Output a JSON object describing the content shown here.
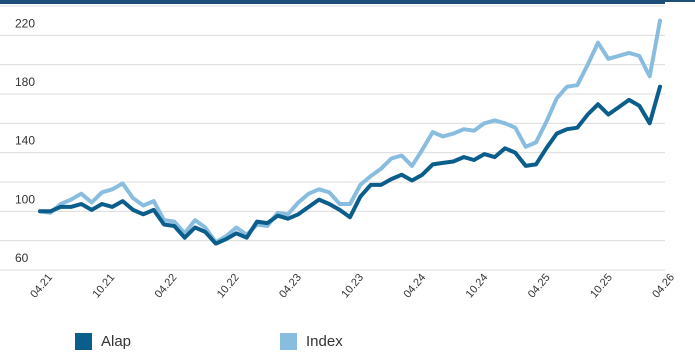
{
  "chart_data": {
    "type": "line",
    "title": "",
    "xlabel": "",
    "ylabel": "",
    "ylim": [
      60,
      240
    ],
    "y_ticks": [
      "60",
      "100",
      "140",
      "180",
      "220"
    ],
    "x_tick_labels": [
      "04.21",
      "10.21",
      "04.22",
      "10.22",
      "04.23",
      "10.23",
      "04.24",
      "10.24",
      "04.25",
      "10.25",
      "04.26"
    ],
    "grid": "horizontal",
    "legend_position": "bottom",
    "series": [
      {
        "name": "Alap",
        "color": "#0b5d8c",
        "values": [
          100,
          100,
          103,
          103,
          105,
          101,
          105,
          103,
          107,
          101,
          98,
          101,
          91,
          90,
          82,
          89,
          86,
          78,
          81,
          85,
          82,
          93,
          92,
          97,
          95,
          98,
          103,
          108,
          105,
          101,
          96,
          110,
          118,
          118,
          122,
          125,
          121,
          125,
          132,
          133,
          134,
          137,
          135,
          139,
          137,
          143,
          140,
          131,
          132,
          143,
          153,
          156,
          157,
          166,
          173,
          166,
          171,
          176,
          172,
          160,
          185
        ]
      },
      {
        "name": "Index",
        "color": "#89bde0",
        "values": [
          100,
          99,
          105,
          108,
          112,
          106,
          113,
          115,
          119,
          109,
          104,
          107,
          94,
          93,
          85,
          94,
          89,
          79,
          83,
          89,
          84,
          91,
          90,
          99,
          98,
          106,
          112,
          115,
          113,
          105,
          105,
          118,
          124,
          129,
          136,
          138,
          131,
          142,
          154,
          151,
          153,
          156,
          155,
          160,
          162,
          160,
          157,
          144,
          147,
          161,
          177,
          185,
          186,
          200,
          215,
          204,
          206,
          208,
          206,
          192,
          230
        ]
      }
    ]
  }
}
